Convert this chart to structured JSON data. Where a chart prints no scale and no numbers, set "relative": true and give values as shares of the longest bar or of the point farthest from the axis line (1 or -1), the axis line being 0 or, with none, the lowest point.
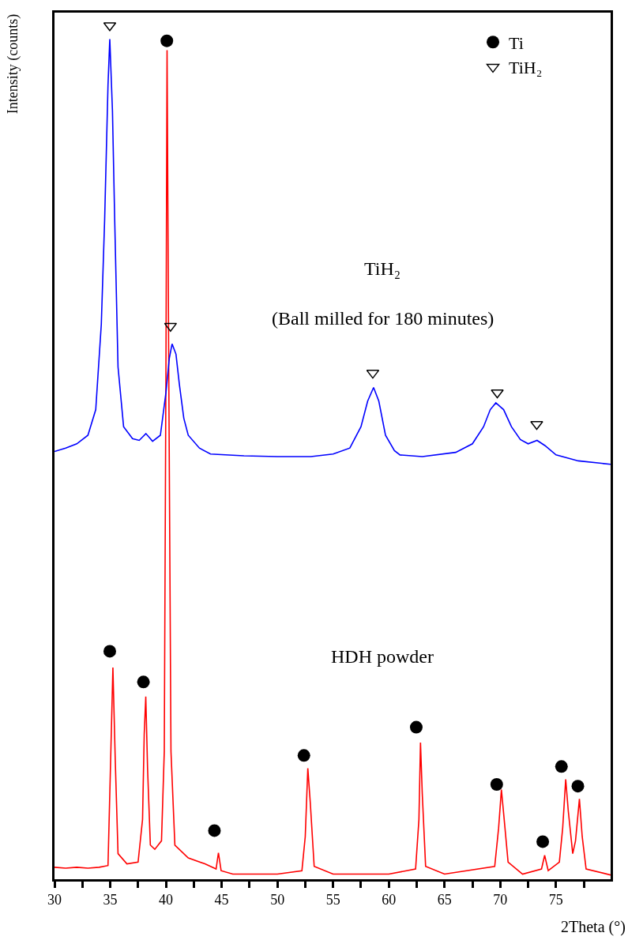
{
  "chart_data": {
    "type": "line",
    "xlabel": "2Theta (°)",
    "ylabel": "Intensity (counts)",
    "relative": true,
    "xlim": [
      30,
      79.9
    ],
    "xticks": [
      30,
      {
        "value": 32.5,
        "label": null
      },
      35,
      {
        "value": 37.5,
        "label": null
      },
      40,
      {
        "value": 42.5,
        "label": null
      },
      45,
      {
        "value": 47.5,
        "label": null
      },
      50,
      {
        "value": 52.5,
        "label": null
      },
      55,
      {
        "value": 57.5,
        "label": null
      },
      60,
      {
        "value": 62.5,
        "label": null
      },
      65,
      {
        "value": 67.5,
        "label": null
      },
      70,
      {
        "value": 72.5,
        "label": null
      },
      75,
      {
        "value": 77.5,
        "label": null
      }
    ],
    "grid": false,
    "legend": "top right",
    "annotations": [
      "TiH₂",
      "(Ball milled for 180 minutes)",
      "HDH powder"
    ],
    "series": [
      {
        "color": "#ff0000",
        "x": [
          30,
          31,
          32,
          33,
          34,
          34.8,
          35.0,
          35.24,
          35.45,
          35.7,
          36.5,
          37.5,
          37.9,
          38.05,
          38.19,
          38.35,
          38.6,
          39.0,
          39.6,
          39.85,
          40.0,
          40.1,
          40.25,
          40.45,
          40.8,
          42,
          43.5,
          44.5,
          44.71,
          44.95,
          46,
          50,
          52.2,
          52.5,
          52.73,
          52.95,
          53.3,
          55,
          60,
          62.4,
          62.7,
          62.84,
          63.0,
          63.3,
          65,
          69.5,
          69.85,
          70.1,
          70.35,
          70.7,
          72,
          73.7,
          73.98,
          74.3,
          75.3,
          75.6,
          75.87,
          76.1,
          76.5,
          76.75,
          77.1,
          77.35,
          77.7,
          79.9
        ],
        "values": [
          0.014,
          0.013,
          0.014,
          0.013,
          0.014,
          0.016,
          0.12,
          0.248,
          0.14,
          0.03,
          0.018,
          0.02,
          0.07,
          0.17,
          0.214,
          0.13,
          0.04,
          0.035,
          0.045,
          0.15,
          0.6,
          0.971,
          0.6,
          0.15,
          0.04,
          0.025,
          0.018,
          0.012,
          0.031,
          0.01,
          0.006,
          0.006,
          0.01,
          0.05,
          0.13,
          0.09,
          0.015,
          0.006,
          0.006,
          0.012,
          0.07,
          0.16,
          0.1,
          0.015,
          0.006,
          0.015,
          0.06,
          0.105,
          0.07,
          0.02,
          0.006,
          0.012,
          0.028,
          0.01,
          0.02,
          0.06,
          0.117,
          0.08,
          0.03,
          0.045,
          0.094,
          0.05,
          0.012,
          0.005
        ]
      },
      {
        "color": "#0000ff",
        "x": [
          30,
          31,
          32,
          33,
          33.7,
          34.2,
          34.5,
          34.8,
          34.96,
          35.2,
          35.4,
          35.7,
          36.2,
          37,
          37.6,
          38.2,
          38.8,
          39.5,
          40.0,
          40.3,
          40.55,
          40.9,
          41.2,
          41.6,
          42,
          43,
          44,
          47,
          50,
          53,
          55,
          56.5,
          57.5,
          58.1,
          58.63,
          59.1,
          59.7,
          60.5,
          61,
          63,
          66,
          67.5,
          68.5,
          69.1,
          69.6,
          70.3,
          71,
          71.8,
          72.5,
          73.3,
          74,
          75,
          77,
          79.9
        ],
        "values": [
          0.501,
          0.505,
          0.51,
          0.52,
          0.55,
          0.65,
          0.773,
          0.93,
          0.984,
          0.9,
          0.773,
          0.6,
          0.53,
          0.516,
          0.514,
          0.522,
          0.513,
          0.52,
          0.57,
          0.61,
          0.627,
          0.615,
          0.58,
          0.54,
          0.52,
          0.505,
          0.498,
          0.496,
          0.495,
          0.495,
          0.498,
          0.505,
          0.53,
          0.56,
          0.576,
          0.56,
          0.52,
          0.502,
          0.497,
          0.495,
          0.5,
          0.51,
          0.53,
          0.55,
          0.558,
          0.55,
          0.53,
          0.515,
          0.51,
          0.514,
          0.508,
          0.497,
          0.49,
          0.486
        ]
      },
      {
        "type": "scatter",
        "name": "Ti",
        "marker": "circle",
        "color": "#000000",
        "x": [
          34.96,
          37.98,
          40.08,
          44.35,
          52.38,
          62.46,
          69.68,
          73.81,
          75.49,
          76.96
        ],
        "values": [
          0.267,
          0.231,
          0.982,
          0.057,
          0.145,
          0.178,
          0.111,
          0.044,
          0.132,
          0.109
        ]
      },
      {
        "type": "scatter",
        "name": "TiH₂",
        "marker": "triangle",
        "color": "#000000",
        "x": [
          34.96,
          40.41,
          58.56,
          69.73,
          73.27
        ],
        "values": [
          1.0,
          0.648,
          0.593,
          0.57,
          0.533
        ]
      }
    ]
  }
}
